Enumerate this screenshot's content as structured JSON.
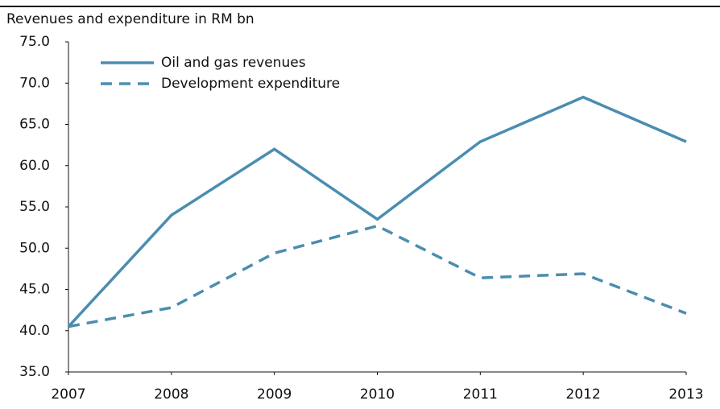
{
  "chart_data": {
    "type": "line",
    "title": "Revenues and expenditure in RM bn",
    "categories": [
      "2007",
      "2008",
      "2009",
      "2010",
      "2011",
      "2012",
      "2013"
    ],
    "series": [
      {
        "name": "Oil and gas revenues",
        "color": "#4b8db0",
        "style": "solid",
        "values": [
          40.5,
          54.0,
          62.0,
          53.5,
          62.9,
          68.3,
          62.9
        ]
      },
      {
        "name": "Development expenditure",
        "color": "#4b8db0",
        "style": "dashed",
        "values": [
          40.5,
          42.8,
          49.4,
          52.7,
          46.4,
          46.9,
          42.1
        ]
      }
    ],
    "ylim": [
      35,
      75
    ],
    "yticks": [
      {
        "value": 35,
        "label": "35.0"
      },
      {
        "value": 40,
        "label": "40.0"
      },
      {
        "value": 45,
        "label": "45.0"
      },
      {
        "value": 50,
        "label": "50.0"
      },
      {
        "value": 55,
        "label": "55.0"
      },
      {
        "value": 60,
        "label": "60.0"
      },
      {
        "value": 65,
        "label": "65.0"
      },
      {
        "value": 70,
        "label": "70.0"
      },
      {
        "value": 75,
        "label": "75.0"
      }
    ],
    "grid": false,
    "legend": "top-left"
  }
}
